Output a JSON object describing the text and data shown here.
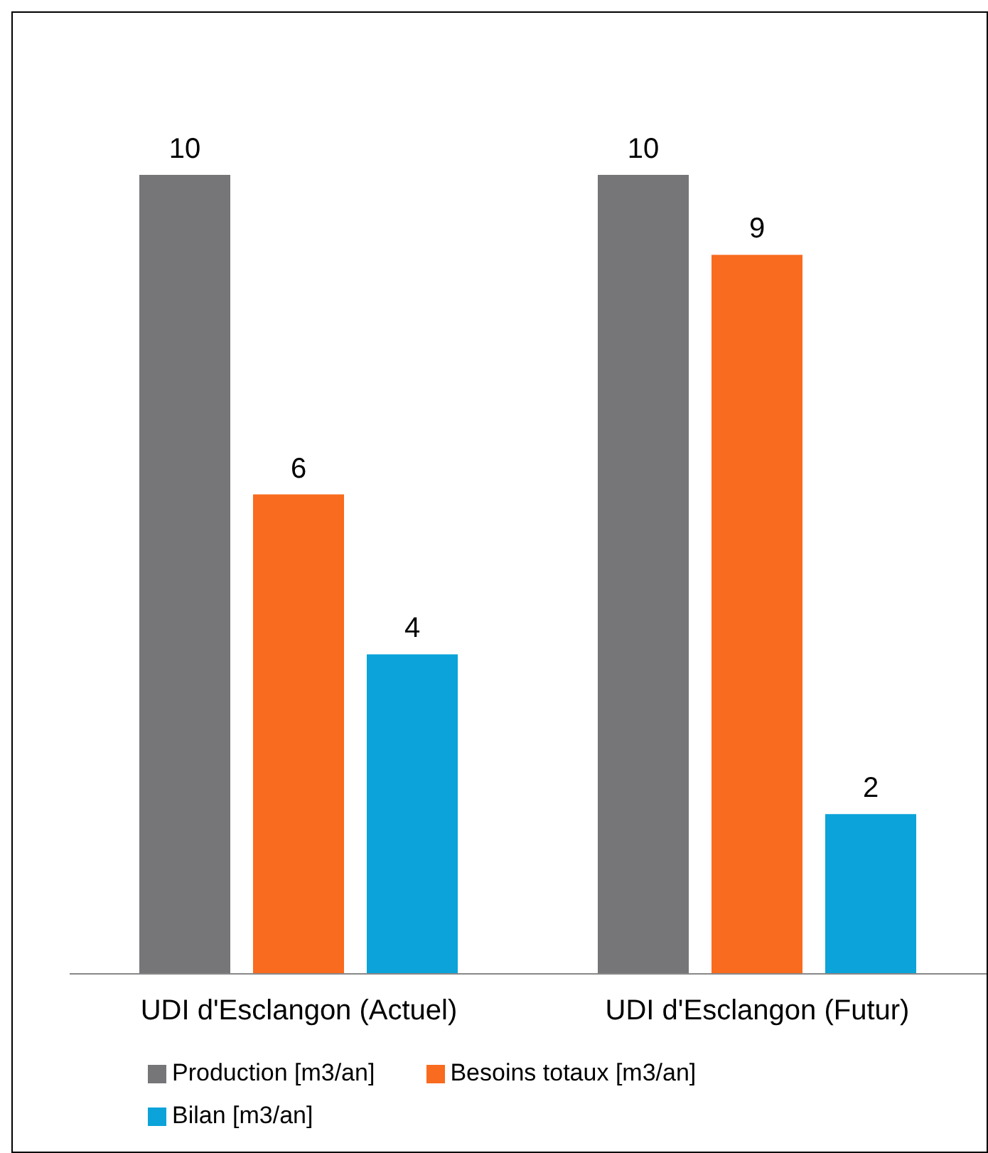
{
  "chart_data": {
    "type": "bar",
    "categories": [
      "UDI d'Esclangon (Actuel)",
      "UDI d'Esclangon (Futur)"
    ],
    "series": [
      {
        "name": "Production [m3/an]",
        "color": "#767679",
        "values": [
          10,
          10
        ]
      },
      {
        "name": "Besoins totaux [m3/an]",
        "color": "#f96b1f",
        "values": [
          6,
          9
        ]
      },
      {
        "name": "Bilan [m3/an]",
        "color": "#0ba3d9",
        "values": [
          4,
          2
        ]
      }
    ],
    "data_labels": true,
    "legend": "bottom",
    "grid": false
  }
}
